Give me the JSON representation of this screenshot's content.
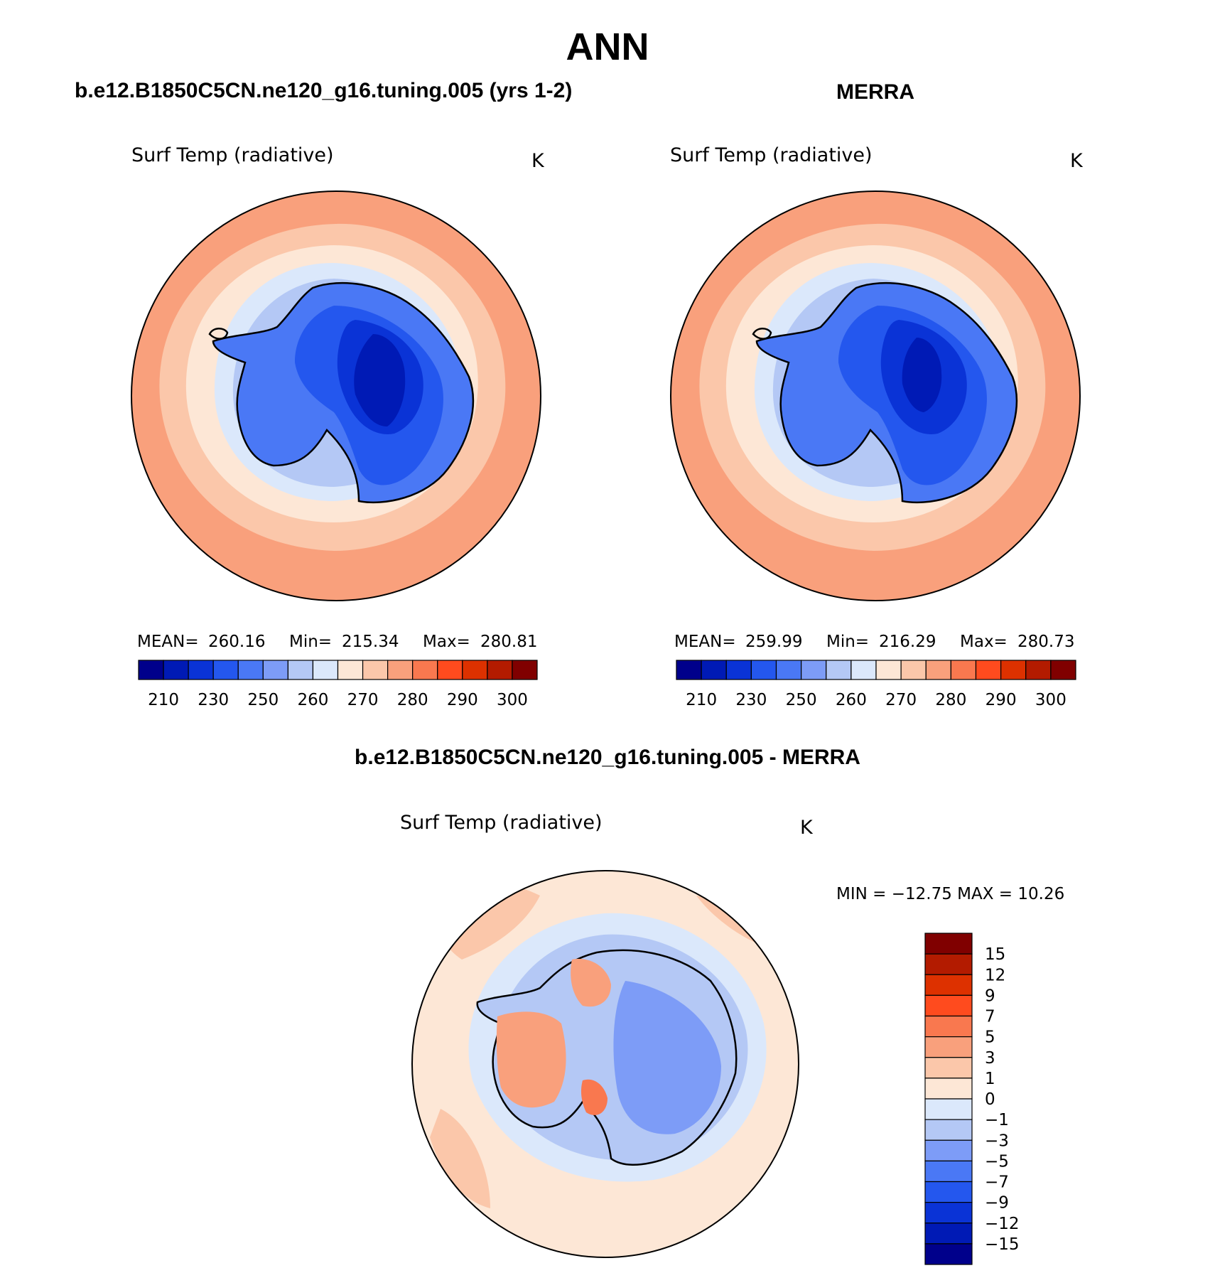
{
  "figure": {
    "title": "ANN"
  },
  "panels": [
    {
      "id": "model",
      "header": "b.e12.B1850C5CN.ne120_g16.tuning.005 (yrs 1-2)",
      "variable": "Surf Temp (radiative)",
      "units": "K",
      "stats": {
        "mean_label": "MEAN=",
        "mean": "260.16",
        "min_label": "Min=",
        "min": "215.34",
        "max_label": "Max=",
        "max": "280.81"
      }
    },
    {
      "id": "obs",
      "header": "MERRA",
      "variable": "Surf Temp (radiative)",
      "units": "K",
      "stats": {
        "mean_label": "MEAN=",
        "mean": "259.99",
        "min_label": "Min=",
        "min": "216.29",
        "max_label": "Max=",
        "max": "280.73"
      }
    },
    {
      "id": "diff",
      "header": "b.e12.B1850C5CN.ne120_g16.tuning.005 - MERRA",
      "variable": "Surf Temp (radiative)",
      "units": "K",
      "stats": {
        "text": "MIN = −12.75 MAX =   10.26"
      }
    }
  ],
  "colorbars": {
    "absolute": {
      "colors": [
        "#00008b",
        "#001ab5",
        "#0a33d6",
        "#2457ee",
        "#4a78f5",
        "#7d9cf7",
        "#b4c8f5",
        "#dbe8fb",
        "#fde7d6",
        "#fbc7aa",
        "#f9a07c",
        "#f9784f",
        "#ff4b1e",
        "#dd3100",
        "#b31b00",
        "#800000"
      ],
      "ticks": [
        "210",
        "230",
        "250",
        "260",
        "270",
        "280",
        "290",
        "300"
      ]
    },
    "difference": {
      "colors": [
        "#00008b",
        "#001ab5",
        "#0a33d6",
        "#2457ee",
        "#4a78f5",
        "#7d9cf7",
        "#b4c8f5",
        "#dbe8fb",
        "#fde7d6",
        "#fbc7aa",
        "#f9a07c",
        "#f9784f",
        "#ff4b1e",
        "#dd3100",
        "#b31b00",
        "#800000"
      ],
      "ticks": [
        "15",
        "12",
        "9",
        "7",
        "5",
        "3",
        "1",
        "0",
        "−1",
        "−3",
        "−5",
        "−7",
        "−9",
        "−12",
        "−15"
      ]
    }
  },
  "chart_data": [
    {
      "type": "heatmap",
      "title": "b.e12.B1850C5CN.ne120_g16.tuning.005 (yrs 1-2)",
      "variable": "Surf Temp (radiative)",
      "units": "K",
      "projection": "polar stereographic, south pole",
      "stats": {
        "mean": 260.16,
        "min": 215.34,
        "max": 280.81
      },
      "levels": [
        210,
        220,
        230,
        240,
        250,
        255,
        260,
        265,
        270,
        275,
        280,
        285,
        290,
        295,
        300
      ]
    },
    {
      "type": "heatmap",
      "title": "MERRA",
      "variable": "Surf Temp (radiative)",
      "units": "K",
      "projection": "polar stereographic, south pole",
      "stats": {
        "mean": 259.99,
        "min": 216.29,
        "max": 280.73
      },
      "levels": [
        210,
        220,
        230,
        240,
        250,
        255,
        260,
        265,
        270,
        275,
        280,
        285,
        290,
        295,
        300
      ]
    },
    {
      "type": "heatmap",
      "title": "b.e12.B1850C5CN.ne120_g16.tuning.005 - MERRA",
      "variable": "Surf Temp (radiative)",
      "units": "K",
      "projection": "polar stereographic, south pole",
      "stats": {
        "min": -12.75,
        "max": 10.26
      },
      "levels": [
        -15,
        -12,
        -9,
        -7,
        -5,
        -3,
        -1,
        0,
        1,
        3,
        5,
        7,
        9,
        12,
        15
      ]
    }
  ]
}
